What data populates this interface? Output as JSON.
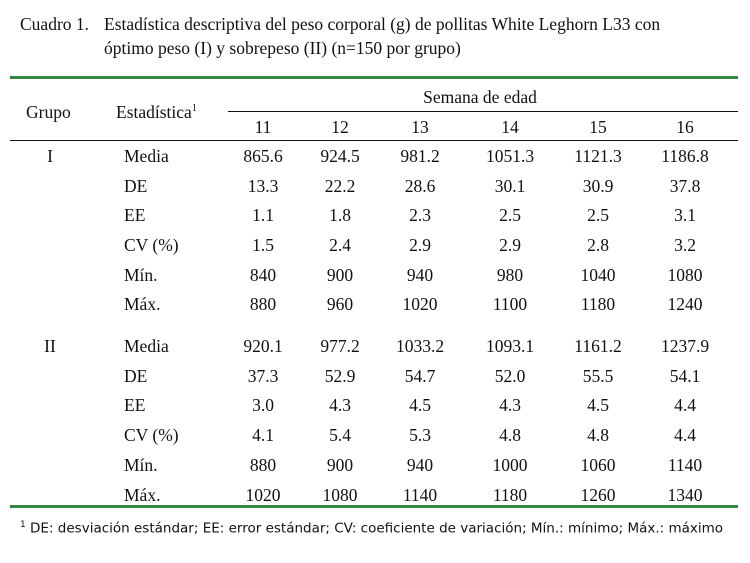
{
  "caption": {
    "label": "Cuadro 1.",
    "line1": "Estadística descriptiva del peso corporal (g) de pollitas White Leghorn L33 con",
    "line2": "óptimo peso (I) y sobrepeso (II) (n=150 por grupo)"
  },
  "header": {
    "group_col": "Grupo",
    "stat_col": "Estadística",
    "stat_sup": "1",
    "weeks_title": "Semana de edad",
    "weeks": [
      "11",
      "12",
      "13",
      "14",
      "15",
      "16"
    ]
  },
  "groups": [
    {
      "name": "I",
      "rows": [
        {
          "stat": "Media",
          "values": [
            "865.6",
            "924.5",
            "981.2",
            "1051.3",
            "1121.3",
            "1186.8"
          ]
        },
        {
          "stat": "DE",
          "values": [
            "13.3",
            "22.2",
            "28.6",
            "30.1",
            "30.9",
            "37.8"
          ]
        },
        {
          "stat": "EE",
          "values": [
            "1.1",
            "1.8",
            "2.3",
            "2.5",
            "2.5",
            "3.1"
          ]
        },
        {
          "stat": "CV (%)",
          "values": [
            "1.5",
            "2.4",
            "2.9",
            "2.9",
            "2.8",
            "3.2"
          ]
        },
        {
          "stat": "Mín.",
          "values": [
            "840",
            "900",
            "940",
            "980",
            "1040",
            "1080"
          ]
        },
        {
          "stat": "Máx.",
          "values": [
            "880",
            "960",
            "1020",
            "1100",
            "1180",
            "1240"
          ]
        }
      ]
    },
    {
      "name": "II",
      "rows": [
        {
          "stat": "Media",
          "values": [
            "920.1",
            "977.2",
            "1033.2",
            "1093.1",
            "1161.2",
            "1237.9"
          ]
        },
        {
          "stat": "DE",
          "values": [
            "37.3",
            "52.9",
            "54.7",
            "52.0",
            "55.5",
            "54.1"
          ]
        },
        {
          "stat": "EE",
          "values": [
            "3.0",
            "4.3",
            "4.5",
            "4.3",
            "4.5",
            "4.4"
          ]
        },
        {
          "stat": "CV (%)",
          "values": [
            "4.1",
            "5.4",
            "5.3",
            "4.8",
            "4.8",
            "4.4"
          ]
        },
        {
          "stat": "Mín.",
          "values": [
            "880",
            "900",
            "940",
            "1000",
            "1060",
            "1140"
          ]
        },
        {
          "stat": "Máx.",
          "values": [
            "1020",
            "1080",
            "1140",
            "1180",
            "1260",
            "1340"
          ]
        }
      ]
    }
  ],
  "footnote": {
    "mark": "1",
    "text": "DE: desviación estándar; EE: error estándar; CV: coeficiente de variación; Mín.: mínimo; Máx.: máximo"
  },
  "colors": {
    "rule": "#2e8a3e"
  }
}
